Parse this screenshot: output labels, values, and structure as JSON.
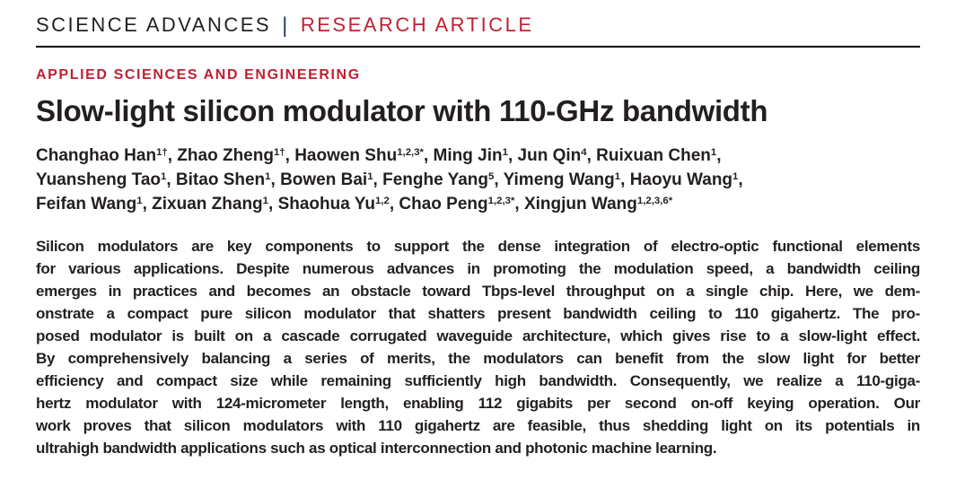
{
  "header": {
    "journal": "SCIENCE ADVANCES",
    "separator": "|",
    "article_type": "RESEARCH ARTICLE"
  },
  "section_label": "APPLIED SCIENCES AND ENGINEERING",
  "title": "Slow-light silicon modulator with 110-GHz bandwidth",
  "authors": {
    "lines": [
      [
        {
          "name": "Changhao Han",
          "sup": "1†"
        },
        {
          "name": "Zhao Zheng",
          "sup": "1†"
        },
        {
          "name": "Haowen Shu",
          "sup": "1,2,3*"
        },
        {
          "name": "Ming Jin",
          "sup": "1"
        },
        {
          "name": "Jun Qin",
          "sup": "4"
        },
        {
          "name": "Ruixuan Chen",
          "sup": "1"
        }
      ],
      [
        {
          "name": "Yuansheng Tao",
          "sup": "1"
        },
        {
          "name": "Bitao Shen",
          "sup": "1"
        },
        {
          "name": "Bowen Bai",
          "sup": "1"
        },
        {
          "name": "Fenghe Yang",
          "sup": "5"
        },
        {
          "name": "Yimeng Wang",
          "sup": "1"
        },
        {
          "name": "Haoyu Wang",
          "sup": "1"
        }
      ],
      [
        {
          "name": "Feifan Wang",
          "sup": "1"
        },
        {
          "name": "Zixuan Zhang",
          "sup": "1"
        },
        {
          "name": "Shaohua Yu",
          "sup": "1,2"
        },
        {
          "name": "Chao Peng",
          "sup": "1,2,3*"
        },
        {
          "name": "Xingjun Wang",
          "sup": "1,2,3,6*"
        }
      ]
    ]
  },
  "abstract": {
    "lines": [
      "Silicon modulators are key components to support the dense integration of electro-optic functional elements",
      "for various applications. Despite numerous advances in promoting the modulation speed, a bandwidth ceiling",
      "emerges in practices and becomes an obstacle toward Tbps-level throughput on a single chip. Here, we dem-",
      "onstrate a compact pure silicon modulator that shatters present bandwidth ceiling to 110 gigahertz. The pro-",
      "posed modulator is built on a cascade corrugated waveguide architecture, which gives rise to a slow-light effect.",
      "By comprehensively balancing a series of merits, the modulators can benefit from the slow light for better",
      "efficiency and compact size while remaining sufficiently high bandwidth. Consequently, we realize a 110-giga-",
      "hertz modulator with 124-micrometer length, enabling 112 gigabits per second on-off keying operation. Our",
      "work proves that silicon modulators with 110 gigahertz are feasible, thus shedding light on its potentials in",
      "ultrahigh bandwidth applications such as optical interconnection and photonic machine learning."
    ]
  },
  "colors": {
    "brand_red": "#c02032",
    "text_dark": "#231f20",
    "separator_blue": "#2b3a67"
  }
}
